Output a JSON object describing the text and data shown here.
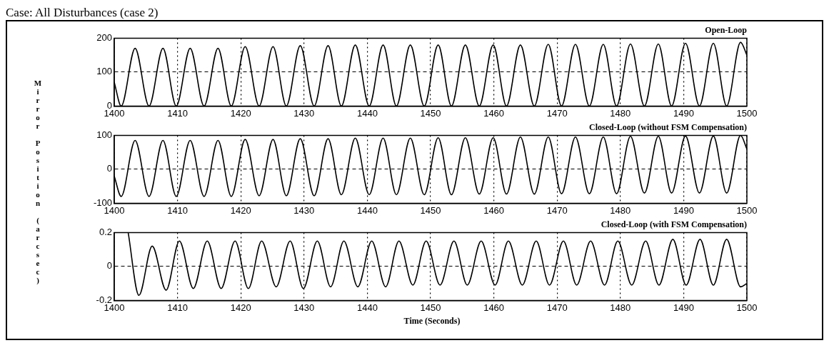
{
  "chart_data": [
    {
      "type": "line",
      "title": "Open-Loop",
      "annotations": [
        "Case: All Disturbances (case 2)"
      ],
      "xlim": [
        1400,
        1500
      ],
      "xticks": [
        1400,
        1410,
        1420,
        1430,
        1440,
        1450,
        1460,
        1470,
        1480,
        1490,
        1500
      ],
      "ylim": [
        0,
        200
      ],
      "yticks": [
        0,
        100,
        200
      ],
      "grid": true,
      "marker": "none",
      "line_style": "solid",
      "color": "#000000",
      "x": [
        1400,
        1401.1,
        1403.3,
        1405.5,
        1407.7,
        1409.8,
        1412.0,
        1414.2,
        1416.4,
        1418.5,
        1420.7,
        1422.9,
        1425.1,
        1427.2,
        1429.4,
        1431.6,
        1433.8,
        1435.9,
        1438.1,
        1440.3,
        1442.5,
        1444.6,
        1446.8,
        1449.0,
        1451.2,
        1453.3,
        1455.5,
        1457.7,
        1459.9,
        1462.0,
        1464.2,
        1466.4,
        1468.6,
        1470.7,
        1472.9,
        1475.1,
        1477.3,
        1479.4,
        1481.6,
        1483.8,
        1486.0,
        1488.1,
        1490.3,
        1492.5,
        1494.7,
        1496.8,
        1499.0,
        1500
      ],
      "values": [
        70,
        0,
        170,
        0,
        170,
        0,
        170,
        0,
        170,
        0,
        175,
        0,
        175,
        0,
        178,
        0,
        178,
        0,
        180,
        0,
        180,
        0,
        180,
        0,
        180,
        0,
        180,
        0,
        180,
        0,
        180,
        0,
        182,
        0,
        182,
        0,
        182,
        0,
        183,
        0,
        183,
        0,
        185,
        0,
        185,
        0,
        188,
        150
      ]
    },
    {
      "type": "line",
      "title": "Closed-Loop (without FSM Compensation)",
      "ylabel": "Mirror Position (arcsec)",
      "xlim": [
        1400,
        1500
      ],
      "xticks": [
        1400,
        1410,
        1420,
        1430,
        1440,
        1450,
        1460,
        1470,
        1480,
        1490,
        1500
      ],
      "ylim": [
        -100,
        100
      ],
      "yticks": [
        -100,
        0,
        100
      ],
      "grid": true,
      "marker": "none",
      "line_style": "solid",
      "color": "#000000",
      "x": [
        1400,
        1401.1,
        1403.3,
        1405.5,
        1407.7,
        1409.8,
        1412.0,
        1414.2,
        1416.4,
        1418.5,
        1420.7,
        1422.9,
        1425.1,
        1427.2,
        1429.4,
        1431.6,
        1433.8,
        1435.9,
        1438.1,
        1440.3,
        1442.5,
        1444.6,
        1446.8,
        1449.0,
        1451.2,
        1453.3,
        1455.5,
        1457.7,
        1459.9,
        1462.0,
        1464.2,
        1466.4,
        1468.6,
        1470.7,
        1472.9,
        1475.1,
        1477.3,
        1479.4,
        1481.6,
        1483.8,
        1486.0,
        1488.1,
        1490.3,
        1492.5,
        1494.7,
        1496.8,
        1499.0,
        1500
      ],
      "values": [
        -20,
        -80,
        85,
        -80,
        85,
        -80,
        85,
        -80,
        85,
        -80,
        88,
        -78,
        88,
        -78,
        90,
        -78,
        90,
        -75,
        92,
        -75,
        92,
        -75,
        92,
        -75,
        93,
        -75,
        93,
        -73,
        93,
        -73,
        95,
        -73,
        95,
        -72,
        95,
        -72,
        95,
        -72,
        97,
        -70,
        97,
        -70,
        98,
        -70,
        98,
        -70,
        100,
        60
      ]
    },
    {
      "type": "line",
      "title": "Closed-Loop (with FSM Compensation)",
      "xlabel": "Time (Seconds)",
      "xlim": [
        1400,
        1500
      ],
      "xticks": [
        1400,
        1410,
        1420,
        1430,
        1440,
        1450,
        1460,
        1470,
        1480,
        1490,
        1500
      ],
      "ylim": [
        -0.2,
        0.2
      ],
      "yticks": [
        -0.2,
        0,
        0.2
      ],
      "grid": true,
      "marker": "none",
      "line_style": "solid",
      "color": "#000000",
      "x": [
        1402.2,
        1403.9,
        1406.0,
        1408.2,
        1410.3,
        1412.5,
        1414.7,
        1416.9,
        1419.1,
        1421.2,
        1423.3,
        1425.6,
        1427.8,
        1429.9,
        1432.1,
        1434.2,
        1436.3,
        1438.5,
        1440.7,
        1442.9,
        1445.0,
        1447.2,
        1449.3,
        1451.5,
        1453.7,
        1455.8,
        1458.0,
        1460.2,
        1462.3,
        1464.5,
        1466.7,
        1468.8,
        1471.0,
        1473.1,
        1475.3,
        1477.5,
        1479.6,
        1481.8,
        1484.0,
        1486.1,
        1488.3,
        1490.4,
        1492.6,
        1494.7,
        1496.8,
        1499.0,
        1500
      ],
      "values": [
        0.2,
        -0.17,
        0.12,
        -0.14,
        0.15,
        -0.13,
        0.15,
        -0.13,
        0.15,
        -0.13,
        0.15,
        -0.12,
        0.15,
        -0.13,
        0.15,
        -0.12,
        0.15,
        -0.12,
        0.15,
        -0.12,
        0.15,
        -0.11,
        0.15,
        -0.11,
        0.15,
        -0.11,
        0.15,
        -0.11,
        0.15,
        -0.11,
        0.15,
        -0.11,
        0.15,
        -0.11,
        0.15,
        -0.11,
        0.15,
        -0.11,
        0.15,
        -0.11,
        0.16,
        -0.11,
        0.16,
        -0.11,
        0.16,
        -0.12,
        -0.1
      ]
    }
  ]
}
